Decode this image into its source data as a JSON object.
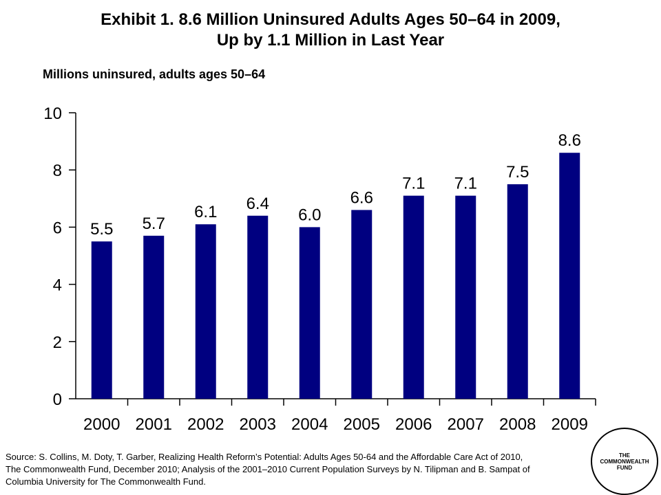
{
  "chart_data": {
    "type": "bar",
    "title_lines": [
      "Exhibit 1. 8.6 Million Uninsured Adults Ages 50–64 in 2009,",
      "Up by 1.1 Million in Last Year"
    ],
    "subtitle": "Millions uninsured, adults ages 50–64",
    "categories": [
      "2000",
      "2001",
      "2002",
      "2003",
      "2004",
      "2005",
      "2006",
      "2007",
      "2008",
      "2009"
    ],
    "values": [
      5.5,
      5.7,
      6.1,
      6.4,
      6.0,
      6.6,
      7.1,
      7.1,
      7.5,
      8.6
    ],
    "data_labels": [
      "5.5",
      "5.7",
      "6.1",
      "6.4",
      "6.0",
      "6.6",
      "7.1",
      "7.1",
      "7.5",
      "8.6"
    ],
    "y_ticks": [
      "0",
      "2",
      "4",
      "6",
      "8",
      "10"
    ],
    "ylim": [
      0,
      10
    ],
    "grid": false,
    "legend": "none",
    "bar_color": "#000080"
  },
  "source_lines": [
    "Source: S. Collins, M. Doty, T. Garber, Realizing Health Reform’s Potential: Adults Ages 50-64 and the Affordable Care Act of 2010,",
    "The Commonwealth Fund, December 2010; Analysis of the 2001–2010 Current Population Surveys by N. Tilipman and B. Sampat of",
    "Columbia University for The Commonwealth Fund."
  ],
  "logo": {
    "lines": [
      "THE",
      "COMMONWEALTH",
      "FUND"
    ]
  }
}
